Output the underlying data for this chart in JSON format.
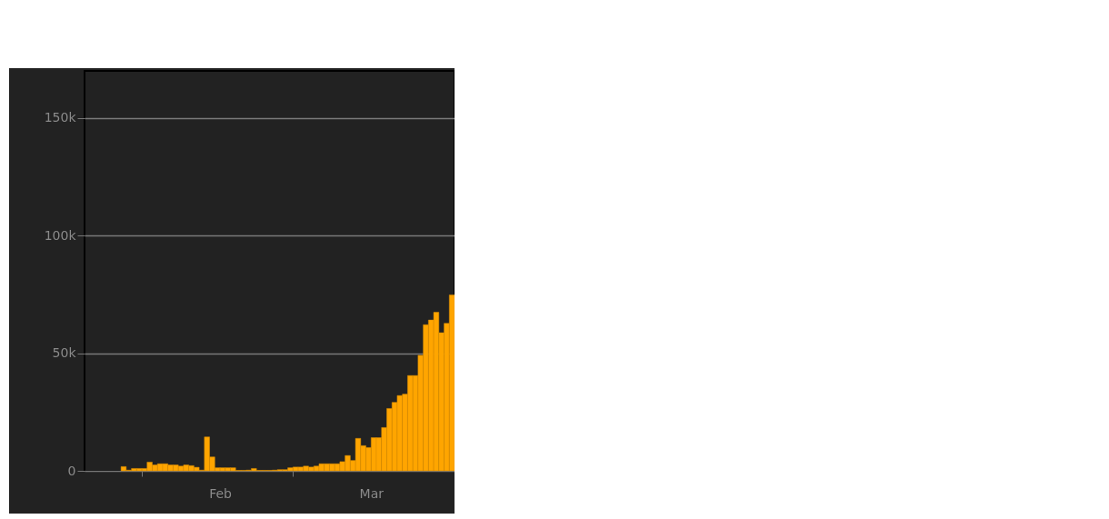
{
  "chart_data": {
    "type": "bar",
    "x": [
      "--01-28",
      "--01-29",
      "--01-30",
      "--01-31",
      "--02-01",
      "--02-02",
      "--02-03",
      "--02-04",
      "--02-05",
      "--02-06",
      "--02-07",
      "--02-08",
      "--02-09",
      "--02-10",
      "--02-11",
      "--02-12",
      "--02-13",
      "--02-14",
      "--02-15",
      "--02-16",
      "--02-17",
      "--02-18",
      "--02-19",
      "--02-20",
      "--02-21",
      "--02-22",
      "--02-23",
      "--02-24",
      "--02-25",
      "--02-26",
      "--02-27",
      "--02-28",
      "--02-29",
      "--03-01",
      "--03-02",
      "--03-03",
      "--03-04",
      "--03-05",
      "--03-06",
      "--03-07",
      "--03-08",
      "--03-09",
      "--03-10",
      "--03-11",
      "--03-12",
      "--03-13",
      "--03-14",
      "--03-15",
      "--03-16",
      "--03-17",
      "--03-18",
      "--03-19",
      "--03-20",
      "--03-21",
      "--03-22",
      "--03-23",
      "--03-24",
      "--03-25",
      "--03-26",
      "--03-27",
      "--03-28",
      "--03-29",
      "--03-30",
      "--03-31"
    ],
    "values": [
      1800,
      300,
      1000,
      1000,
      1000,
      3700,
      2500,
      3000,
      3000,
      2500,
      2500,
      2000,
      2500,
      2200,
      1500,
      300,
      14400,
      5900,
      1300,
      1300,
      1300,
      1300,
      200,
      200,
      300,
      1000,
      200,
      200,
      200,
      300,
      500,
      500,
      1300,
      1600,
      1600,
      2000,
      1600,
      2000,
      3000,
      3000,
      3000,
      3000,
      3900,
      6500,
      4400,
      13800,
      10700,
      9900,
      14100,
      14100,
      18400,
      26500,
      29100,
      32000,
      32600,
      40500,
      40500,
      49100,
      62100,
      64100,
      67400,
      58700,
      62700,
      74800
    ],
    "color": "#ffa500",
    "xlim": [
      "--01-21",
      "--04-01"
    ],
    "xticks": [
      {
        "value": "--02-01",
        "label": null
      },
      {
        "value": "--03-01",
        "label": null
      },
      {
        "value": "--02-16",
        "label": "Feb"
      },
      {
        "value": "--03-16",
        "label": "Mar"
      }
    ],
    "ylim": [
      0,
      170000
    ],
    "yticks": [
      0,
      {
        "value": 50000,
        "label": "50k"
      },
      {
        "value": 100000,
        "label": "100k"
      },
      {
        "value": 150000,
        "label": "150k"
      }
    ],
    "grid": "y"
  }
}
